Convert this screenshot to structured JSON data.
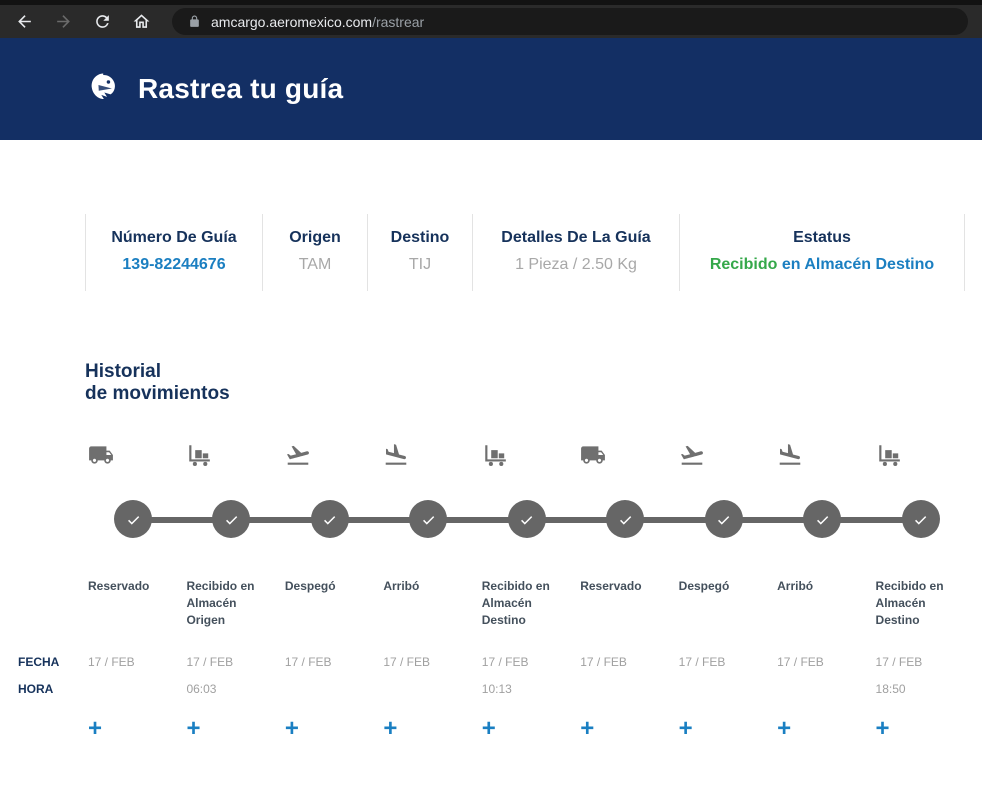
{
  "browser": {
    "domain": "amcargo.aeromexico.com",
    "path": "/rastrear",
    "icons": [
      "back-icon",
      "forward-icon",
      "refresh-icon",
      "home-icon",
      "lock-icon"
    ]
  },
  "header": {
    "title": "Rastrea tu guía",
    "logo": "aeromexico-eagle-logo",
    "background_color": "#132f64"
  },
  "summary": [
    {
      "label": "Número De Guía",
      "value": "139-82244676"
    },
    {
      "label": "Origen",
      "value": "TAM"
    },
    {
      "label": "Destino",
      "value": "TIJ"
    },
    {
      "label": "Detalles De La Guía",
      "value": "1 Pieza / 2.50 Kg"
    },
    {
      "label": "Estatus",
      "value_green": "Recibido",
      "value_blue": "en Almacén Destino"
    }
  ],
  "history": {
    "title_line1": "Historial",
    "title_line2": "de movimientos",
    "fecha_label": "FECHA",
    "hora_label": "HORA",
    "expand_label": "+",
    "steps": [
      {
        "icon": "truck-icon",
        "label": "Reservado",
        "fecha": "17 / FEB",
        "hora": ""
      },
      {
        "icon": "cart-icon",
        "label": "Recibido en Almacén Origen",
        "fecha": "17 / FEB",
        "hora": "06:03"
      },
      {
        "icon": "plane-takeoff-icon",
        "label": "Despegó",
        "fecha": "17 / FEB",
        "hora": ""
      },
      {
        "icon": "plane-landing-icon",
        "label": "Arribó",
        "fecha": "17 / FEB",
        "hora": ""
      },
      {
        "icon": "cart-icon",
        "label": "Recibido en Almacén Destino",
        "fecha": "17 / FEB",
        "hora": "10:13"
      },
      {
        "icon": "truck-icon",
        "label": "Reservado",
        "fecha": "17 / FEB",
        "hora": ""
      },
      {
        "icon": "plane-takeoff-icon",
        "label": "Despegó",
        "fecha": "17 / FEB",
        "hora": ""
      },
      {
        "icon": "plane-landing-icon",
        "label": "Arribó",
        "fecha": "17 / FEB",
        "hora": ""
      },
      {
        "icon": "cart-icon",
        "label": "Recibido en Almacén Destino",
        "fecha": "17 / FEB",
        "hora": "18:50"
      }
    ]
  },
  "colors": {
    "accent_blue": "#1b7fc1",
    "status_green": "#35a84a",
    "navy": "#132f64",
    "timeline_gray": "#666666"
  }
}
